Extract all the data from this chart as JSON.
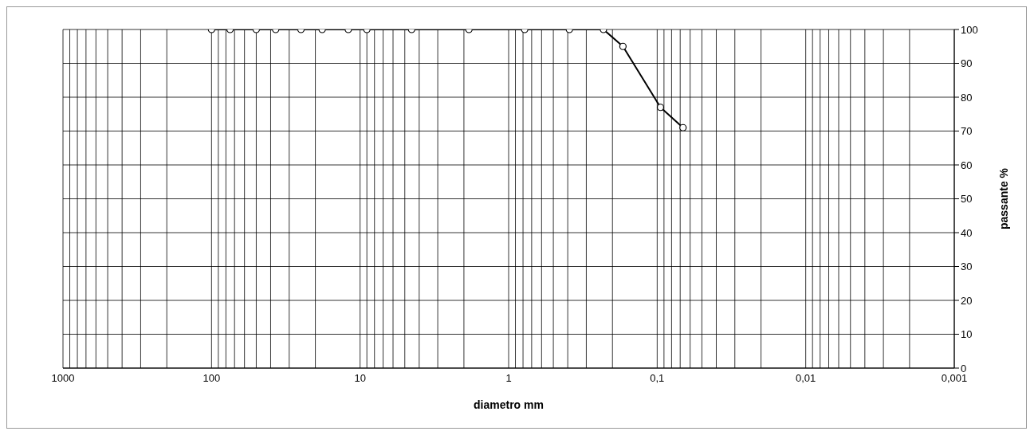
{
  "chart_data": {
    "type": "line",
    "xlabel": "diametro mm",
    "ylabel": "passante %",
    "x": [
      100,
      75,
      50,
      37,
      25,
      18,
      12,
      9,
      4.5,
      1.85,
      0.78,
      0.39,
      0.23,
      0.17,
      0.095,
      0.067
    ],
    "series": [
      {
        "color": "#000000",
        "values": [
          100,
          100,
          100,
          100,
          100,
          100,
          100,
          100,
          100,
          100,
          100,
          100,
          100,
          95,
          77,
          71
        ]
      }
    ],
    "log": "x",
    "xlim": [
      1000,
      0.001
    ],
    "xticks": [
      {
        "value": 1000,
        "label": "1000"
      },
      {
        "value": 900,
        "label": null
      },
      {
        "value": 800,
        "label": null
      },
      {
        "value": 700,
        "label": null
      },
      {
        "value": 600,
        "label": null
      },
      {
        "value": 500,
        "label": null
      },
      {
        "value": 400,
        "label": null
      },
      {
        "value": 300,
        "label": null
      },
      {
        "value": 200,
        "label": null
      },
      {
        "value": 100,
        "label": "100"
      },
      {
        "value": 90,
        "label": null
      },
      {
        "value": 80,
        "label": null
      },
      {
        "value": 70,
        "label": null
      },
      {
        "value": 60,
        "label": null
      },
      {
        "value": 50,
        "label": null
      },
      {
        "value": 40,
        "label": null
      },
      {
        "value": 30,
        "label": null
      },
      {
        "value": 20,
        "label": null
      },
      {
        "value": 10,
        "label": "10"
      },
      {
        "value": 9,
        "label": null
      },
      {
        "value": 8,
        "label": null
      },
      {
        "value": 7,
        "label": null
      },
      {
        "value": 6,
        "label": null
      },
      {
        "value": 5,
        "label": null
      },
      {
        "value": 4,
        "label": null
      },
      {
        "value": 3,
        "label": null
      },
      {
        "value": 2,
        "label": null
      },
      {
        "value": 1,
        "label": "1"
      },
      {
        "value": 0.9,
        "label": null
      },
      {
        "value": 0.8,
        "label": null
      },
      {
        "value": 0.7,
        "label": null
      },
      {
        "value": 0.6,
        "label": null
      },
      {
        "value": 0.5,
        "label": null
      },
      {
        "value": 0.4,
        "label": null
      },
      {
        "value": 0.3,
        "label": null
      },
      {
        "value": 0.2,
        "label": null
      },
      {
        "value": 0.1,
        "label": "0,1"
      },
      {
        "value": 0.09,
        "label": null
      },
      {
        "value": 0.08,
        "label": null
      },
      {
        "value": 0.07,
        "label": null
      },
      {
        "value": 0.06,
        "label": null
      },
      {
        "value": 0.05,
        "label": null
      },
      {
        "value": 0.04,
        "label": null
      },
      {
        "value": 0.03,
        "label": null
      },
      {
        "value": 0.02,
        "label": null
      },
      {
        "value": 0.01,
        "label": "0,01"
      },
      {
        "value": 0.009,
        "label": null
      },
      {
        "value": 0.008,
        "label": null
      },
      {
        "value": 0.007,
        "label": null
      },
      {
        "value": 0.006,
        "label": null
      },
      {
        "value": 0.005,
        "label": null
      },
      {
        "value": 0.004,
        "label": null
      },
      {
        "value": 0.003,
        "label": null
      },
      {
        "value": 0.002,
        "label": null
      },
      {
        "value": 0.001,
        "label": "0,001"
      }
    ],
    "ylim": [
      0,
      100
    ],
    "yticks": [
      0,
      10,
      20,
      30,
      40,
      50,
      60,
      70,
      80,
      90,
      100
    ],
    "grid": true,
    "marker": "circle",
    "line_style": "solid",
    "legend": false
  }
}
